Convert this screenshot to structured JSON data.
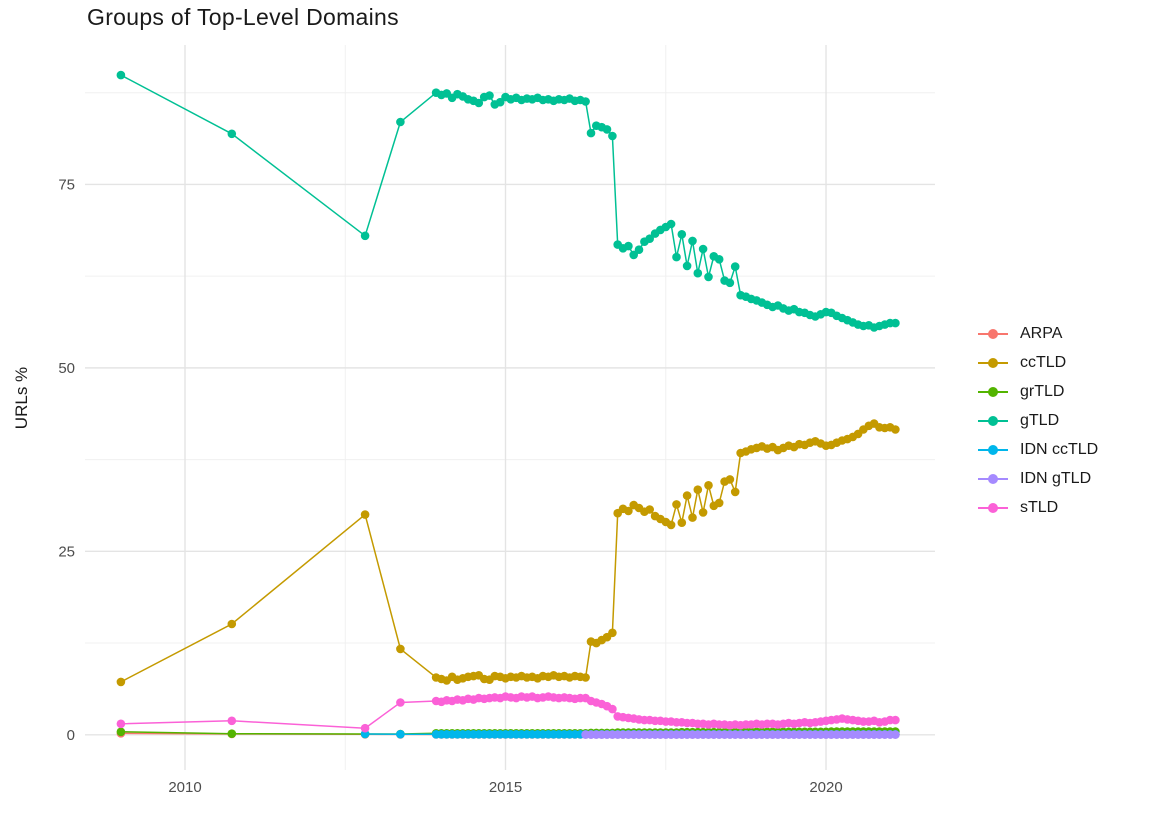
{
  "chart_data": {
    "type": "line",
    "title": "Groups of Top-Level Domains",
    "xlabel": "",
    "ylabel": "URLs %",
    "legend_position": "right",
    "grid": true,
    "x_axis": {
      "ticks": [
        2010,
        2015,
        2020
      ],
      "minor_ticks": [
        2012.5,
        2017.5
      ],
      "range": [
        2008.44,
        2021.7
      ]
    },
    "y_axis": {
      "ticks": [
        0,
        25,
        50,
        75
      ],
      "minor_ticks": [
        12.5,
        37.5,
        62.5,
        87.5
      ],
      "range": [
        -4.8,
        94.0
      ]
    },
    "x_monthly": [
      2013.917,
      2014.0,
      2014.083,
      2014.167,
      2014.25,
      2014.333,
      2014.417,
      2014.5,
      2014.583,
      2014.667,
      2014.75,
      2014.833,
      2014.917,
      2015.0,
      2015.083,
      2015.167,
      2015.25,
      2015.333,
      2015.417,
      2015.5,
      2015.583,
      2015.667,
      2015.75,
      2015.833,
      2015.917,
      2016.0,
      2016.083,
      2016.167,
      2016.25,
      2016.333,
      2016.417,
      2016.5,
      2016.583,
      2016.667,
      2016.75,
      2016.833,
      2016.917,
      2017.0,
      2017.083,
      2017.167,
      2017.25,
      2017.333,
      2017.417,
      2017.5,
      2017.583,
      2017.667,
      2017.75,
      2017.833,
      2017.917,
      2018.0,
      2018.083,
      2018.167,
      2018.25,
      2018.333,
      2018.417,
      2018.5,
      2018.583,
      2018.667,
      2018.75,
      2018.833,
      2018.917,
      2019.0,
      2019.083,
      2019.167,
      2019.25,
      2019.333,
      2019.417,
      2019.5,
      2019.583,
      2019.667,
      2019.75,
      2019.833,
      2019.917,
      2020.0,
      2020.083,
      2020.167,
      2020.25,
      2020.333,
      2020.417,
      2020.5,
      2020.583,
      2020.667,
      2020.75,
      2020.833,
      2020.917,
      2021.0,
      2021.083
    ],
    "series": [
      {
        "name": "ARPA",
        "color": "#F8766D",
        "early": [
          [
            2009.0,
            0.2
          ],
          [
            2010.73,
            0.1
          ],
          [
            2012.81,
            0.06
          ],
          [
            2013.36,
            0.05
          ]
        ],
        "monthly_start_index": 0,
        "monthly": [
          0.04,
          0.04,
          0.04,
          0.04,
          0.04,
          0.04,
          0.04,
          0.04,
          0.04,
          0.04,
          0.04,
          0.04,
          0.04,
          0.04,
          0.04,
          0.04,
          0.04,
          0.04,
          0.04,
          0.04,
          0.04,
          0.04,
          0.04,
          0.04,
          0.04,
          0.04,
          0.04,
          0.04,
          0.04,
          0.04,
          0.04,
          0.04,
          0.04,
          0.04,
          0.04,
          0.04,
          0.04,
          0.04,
          0.04,
          0.04,
          0.04,
          0.04,
          0.04,
          0.04,
          0.04,
          0.04,
          0.04,
          0.04,
          0.04,
          0.04,
          0.04,
          0.04,
          0.04,
          0.04,
          0.04,
          0.04,
          0.04,
          0.04,
          0.04,
          0.04,
          0.04,
          0.04,
          0.04,
          0.04,
          0.04,
          0.04,
          0.04,
          0.04,
          0.04,
          0.04,
          0.04,
          0.04,
          0.04,
          0.04,
          0.04,
          0.04,
          0.04,
          0.04,
          0.04,
          0.04,
          0.04,
          0.04,
          0.04,
          0.04,
          0.04,
          0.04,
          0.04
        ]
      },
      {
        "name": "ccTLD",
        "color": "#C49A00",
        "early": [
          [
            2009.0,
            7.2
          ],
          [
            2010.73,
            15.1
          ],
          [
            2012.81,
            30.0
          ],
          [
            2013.36,
            11.7
          ]
        ],
        "monthly_start_index": 0,
        "monthly": [
          7.8,
          7.6,
          7.4,
          7.9,
          7.5,
          7.7,
          7.9,
          8.0,
          8.1,
          7.6,
          7.5,
          8.0,
          7.9,
          7.7,
          7.9,
          7.8,
          8.0,
          7.8,
          7.9,
          7.7,
          8.0,
          7.9,
          8.1,
          7.9,
          8.0,
          7.8,
          8.0,
          7.9,
          7.8,
          12.7,
          12.5,
          12.9,
          13.3,
          13.9,
          30.2,
          30.8,
          30.5,
          31.3,
          30.9,
          30.4,
          30.7,
          29.8,
          29.4,
          29.0,
          28.6,
          31.4,
          28.9,
          32.6,
          29.6,
          33.4,
          30.3,
          34.0,
          31.2,
          31.6,
          34.5,
          34.8,
          33.1,
          38.4,
          38.6,
          38.9,
          39.1,
          39.3,
          39.0,
          39.2,
          38.8,
          39.1,
          39.4,
          39.2,
          39.6,
          39.5,
          39.8,
          40.0,
          39.7,
          39.4,
          39.5,
          39.8,
          40.1,
          40.3,
          40.6,
          41.0,
          41.6,
          42.1,
          42.4,
          41.9,
          41.8,
          41.9,
          41.6
        ]
      },
      {
        "name": "grTLD",
        "color": "#53B400",
        "early": [
          [
            2009.0,
            0.4
          ],
          [
            2010.73,
            0.15
          ],
          [
            2012.81,
            0.1
          ],
          [
            2013.36,
            0.1
          ]
        ],
        "monthly_start_index": 0,
        "monthly": [
          0.2,
          0.2,
          0.2,
          0.2,
          0.2,
          0.2,
          0.2,
          0.2,
          0.2,
          0.2,
          0.2,
          0.2,
          0.2,
          0.2,
          0.2,
          0.2,
          0.2,
          0.2,
          0.2,
          0.2,
          0.2,
          0.2,
          0.2,
          0.2,
          0.2,
          0.2,
          0.2,
          0.2,
          0.2,
          0.25,
          0.25,
          0.25,
          0.25,
          0.25,
          0.3,
          0.3,
          0.3,
          0.3,
          0.3,
          0.3,
          0.3,
          0.3,
          0.3,
          0.3,
          0.3,
          0.3,
          0.35,
          0.35,
          0.35,
          0.35,
          0.35,
          0.35,
          0.35,
          0.35,
          0.35,
          0.35,
          0.35,
          0.35,
          0.4,
          0.4,
          0.4,
          0.4,
          0.4,
          0.4,
          0.4,
          0.4,
          0.4,
          0.4,
          0.4,
          0.4,
          0.4,
          0.4,
          0.4,
          0.4,
          0.45,
          0.45,
          0.45,
          0.45,
          0.45,
          0.45,
          0.45,
          0.45,
          0.45,
          0.45,
          0.45,
          0.45,
          0.45
        ]
      },
      {
        "name": "gTLD",
        "color": "#00C094",
        "early": [
          [
            2009.0,
            89.9
          ],
          [
            2010.73,
            81.9
          ],
          [
            2012.81,
            68.0
          ],
          [
            2013.36,
            83.5
          ]
        ],
        "monthly_start_index": 0,
        "monthly": [
          87.5,
          87.2,
          87.4,
          86.8,
          87.3,
          87.0,
          86.6,
          86.4,
          86.1,
          86.9,
          87.1,
          85.9,
          86.2,
          86.9,
          86.6,
          86.8,
          86.5,
          86.7,
          86.6,
          86.8,
          86.5,
          86.6,
          86.4,
          86.6,
          86.5,
          86.7,
          86.4,
          86.5,
          86.3,
          82.0,
          83.0,
          82.8,
          82.5,
          81.6,
          66.8,
          66.3,
          66.6,
          65.4,
          66.1,
          67.2,
          67.6,
          68.3,
          68.8,
          69.2,
          69.6,
          65.1,
          68.2,
          63.9,
          67.3,
          62.9,
          66.2,
          62.4,
          65.2,
          64.8,
          61.9,
          61.6,
          63.8,
          59.9,
          59.7,
          59.4,
          59.2,
          58.9,
          58.6,
          58.3,
          58.5,
          58.1,
          57.8,
          58.0,
          57.6,
          57.5,
          57.2,
          57.0,
          57.3,
          57.6,
          57.5,
          57.1,
          56.8,
          56.5,
          56.2,
          55.9,
          55.7,
          55.8,
          55.5,
          55.7,
          55.9,
          56.1,
          56.1
        ]
      },
      {
        "name": "IDN ccTLD",
        "color": "#00B6EB",
        "early": [
          [
            2012.81,
            0.1
          ],
          [
            2013.36,
            0.08
          ]
        ],
        "monthly_start_index": 0,
        "monthly": [
          0.07,
          0.07,
          0.07,
          0.07,
          0.07,
          0.07,
          0.07,
          0.07,
          0.07,
          0.07,
          0.07,
          0.07,
          0.07,
          0.07,
          0.07,
          0.07,
          0.07,
          0.07,
          0.07,
          0.07,
          0.07,
          0.07,
          0.07,
          0.07,
          0.07,
          0.07,
          0.07,
          0.07,
          0.07,
          0.07,
          0.07,
          0.07,
          0.07,
          0.07,
          0.07,
          0.07,
          0.07,
          0.07,
          0.07,
          0.07,
          0.07,
          0.07,
          0.07,
          0.07,
          0.07,
          0.07,
          0.07,
          0.07,
          0.07,
          0.07,
          0.07,
          0.07,
          0.07,
          0.07,
          0.07,
          0.07,
          0.07,
          0.07,
          0.07,
          0.07,
          0.07,
          0.07,
          0.07,
          0.07,
          0.07,
          0.07,
          0.07,
          0.07,
          0.07,
          0.07,
          0.07,
          0.07,
          0.07,
          0.07,
          0.07,
          0.07,
          0.07,
          0.07,
          0.07,
          0.07,
          0.07,
          0.07,
          0.07,
          0.07,
          0.07,
          0.07,
          0.07
        ]
      },
      {
        "name": "IDN gTLD",
        "color": "#A58AFF",
        "early": [],
        "monthly_start_index": 28,
        "monthly": [
          0.02,
          0.02,
          0.02,
          0.02,
          0.02,
          0.02,
          0.02,
          0.02,
          0.02,
          0.02,
          0.02,
          0.02,
          0.02,
          0.02,
          0.02,
          0.02,
          0.02,
          0.02,
          0.02,
          0.02,
          0.02,
          0.02,
          0.02,
          0.02,
          0.02,
          0.02,
          0.02,
          0.02,
          0.02,
          0.02,
          0.02,
          0.02,
          0.02,
          0.02,
          0.02,
          0.02,
          0.02,
          0.02,
          0.02,
          0.02,
          0.02,
          0.02,
          0.02,
          0.02,
          0.02,
          0.02,
          0.02,
          0.02,
          0.02,
          0.02,
          0.02,
          0.02,
          0.02,
          0.02,
          0.02,
          0.02,
          0.02,
          0.02,
          0.02
        ]
      },
      {
        "name": "sTLD",
        "color": "#FB61D7",
        "early": [
          [
            2009.0,
            1.5
          ],
          [
            2010.73,
            1.9
          ],
          [
            2012.81,
            0.9
          ],
          [
            2013.36,
            4.4
          ]
        ],
        "monthly_start_index": 0,
        "monthly": [
          4.6,
          4.5,
          4.7,
          4.6,
          4.8,
          4.7,
          4.9,
          4.8,
          5.0,
          4.9,
          5.0,
          5.1,
          5.0,
          5.2,
          5.1,
          5.0,
          5.2,
          5.1,
          5.2,
          5.0,
          5.1,
          5.2,
          5.1,
          5.0,
          5.1,
          5.0,
          4.9,
          5.0,
          5.0,
          4.6,
          4.4,
          4.2,
          3.9,
          3.5,
          2.5,
          2.4,
          2.3,
          2.2,
          2.1,
          2.0,
          2.0,
          1.9,
          1.9,
          1.8,
          1.8,
          1.7,
          1.7,
          1.6,
          1.6,
          1.5,
          1.5,
          1.4,
          1.5,
          1.4,
          1.4,
          1.3,
          1.4,
          1.3,
          1.4,
          1.4,
          1.5,
          1.4,
          1.5,
          1.5,
          1.4,
          1.5,
          1.6,
          1.5,
          1.6,
          1.7,
          1.6,
          1.7,
          1.8,
          1.9,
          2.0,
          2.1,
          2.2,
          2.1,
          2.0,
          1.9,
          1.8,
          1.8,
          1.9,
          1.7,
          1.8,
          2.0,
          2.0
        ]
      }
    ],
    "legend_labels": [
      "ARPA",
      "ccTLD",
      "grTLD",
      "gTLD",
      "IDN ccTLD",
      "IDN gTLD",
      "sTLD"
    ]
  },
  "style": {
    "grid_major_color": "#e4e4e4",
    "grid_minor_color": "#f0f0f0",
    "tick_label_color": "#4d4d4d",
    "text_color": "#1a1a1a",
    "background": "#ffffff"
  }
}
